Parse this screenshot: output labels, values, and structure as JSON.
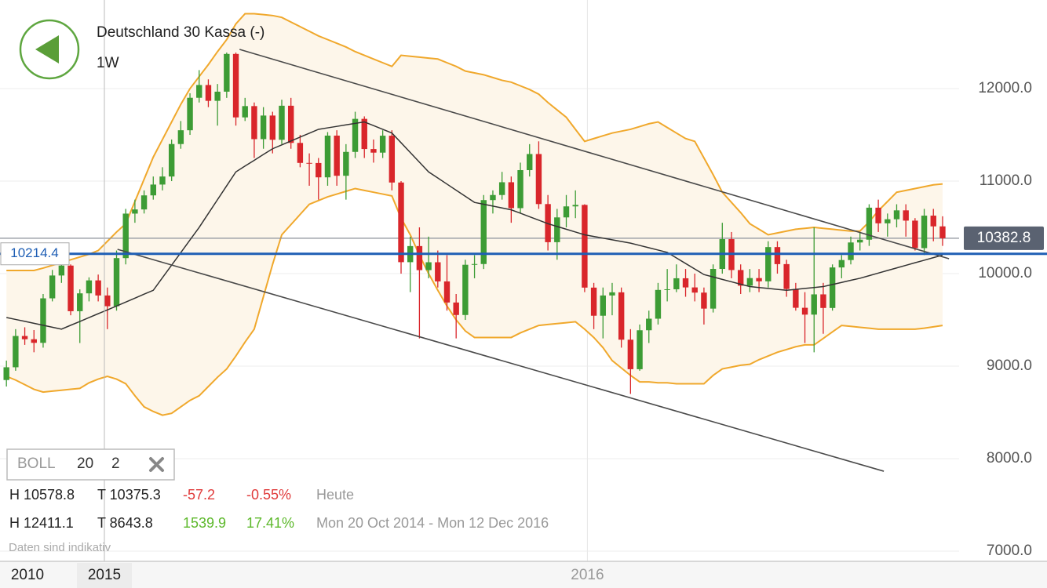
{
  "chart_data": {
    "type": "candlestick",
    "title": "Deutschland 30 Kassa (-)",
    "interval": "1W",
    "up_color": "#3d9c35",
    "down_color": "#d9262b",
    "band_color": "#f0a82c",
    "middle_color": "#333333",
    "band_fill": "#fdf6ea",
    "xlim": [
      -0.7,
      103.8
    ],
    "ylim": [
      6890,
      12958
    ],
    "yticks": [
      {
        "value": 7000,
        "label": "7000.0"
      },
      {
        "value": 8000,
        "label": "8000.0"
      },
      {
        "value": 9000,
        "label": "9000.0"
      },
      {
        "value": 10000,
        "label": "10000.0"
      },
      {
        "value": 11000,
        "label": "11000.0"
      },
      {
        "value": 12000,
        "label": "12000.0"
      }
    ],
    "xticks": [
      {
        "value": 63.3,
        "label": "2016"
      }
    ],
    "grid": true,
    "open": [
      8850,
      8988,
      9326,
      9291,
      9252,
      9733,
      9980,
      10087,
      9594,
      9787,
      9927,
      9764,
      9648,
      10168,
      10649,
      10694,
      10846,
      10963,
      11050,
      11401,
      11550,
      11901,
      12039,
      11868,
      11967,
      12375,
      11689,
      11811,
      11454,
      11709,
      11447,
      11815,
      11413,
      11197,
      11196,
      11041,
      11492,
      11058,
      11316,
      11673,
      11347,
      11308,
      11491,
      10985,
      10124,
      10298,
      10038,
      10123,
      9916,
      9688,
      9553,
      10096,
      10104,
      10795,
      10850,
      10988,
      10708,
      11119,
      11293,
      10752,
      10340,
      10608,
      10727,
      10743,
      9849,
      9545,
      9764,
      9798,
      9286,
      8967,
      9388,
      9513,
      9824,
      9831,
      9950,
      9851,
      9795,
      9622,
      10051,
      10373,
      10039,
      9870,
      9952,
      9917,
      10287,
      10103,
      9834,
      9631,
      9557,
      9776,
      9629,
      10067,
      10147,
      10337,
      10367,
      10713,
      10544,
      10588,
      10684,
      10573,
      10276,
      10627,
      10511
    ],
    "high": [
      9060,
      9400,
      9420,
      9390,
      9780,
      10040,
      10140,
      10100,
      9830,
      9960,
      9990,
      9850,
      10250,
      10700,
      10800,
      10900,
      11050,
      11150,
      11450,
      11650,
      11950,
      12200,
      12100,
      12050,
      12390,
      12390,
      11900,
      11850,
      11800,
      11750,
      11880,
      11900,
      11500,
      11300,
      11250,
      11530,
      11550,
      11400,
      11750,
      11700,
      11450,
      11550,
      11550,
      11000,
      10400,
      10500,
      10400,
      10250,
      10200,
      9780,
      10150,
      10200,
      10850,
      10900,
      11100,
      11050,
      11200,
      11400,
      11430,
      10850,
      10700,
      10850,
      10900,
      10750,
      9900,
      9850,
      9900,
      9850,
      9400,
      9450,
      9600,
      9900,
      10050,
      10100,
      10050,
      10000,
      9850,
      10100,
      10550,
      10450,
      10100,
      10050,
      10050,
      10350,
      10350,
      10150,
      9900,
      9800,
      10500,
      9900,
      10100,
      10200,
      10400,
      10450,
      10750,
      10800,
      10650,
      10750,
      10750,
      10600,
      10700,
      10700,
      10620
    ],
    "low": [
      8780,
      8950,
      9230,
      9150,
      9200,
      9700,
      9900,
      9550,
      9250,
      9700,
      9700,
      9400,
      9600,
      10100,
      10550,
      10650,
      10800,
      10900,
      11000,
      11350,
      11500,
      11850,
      11800,
      11600,
      11900,
      11600,
      11650,
      11250,
      11350,
      11300,
      11400,
      11350,
      11150,
      10950,
      10800,
      10950,
      10950,
      10800,
      11250,
      11250,
      11200,
      11250,
      10900,
      10000,
      9800,
      9300,
      9950,
      9850,
      9600,
      9300,
      9500,
      9950,
      10050,
      10650,
      10800,
      10550,
      10650,
      11050,
      10700,
      10250,
      10150,
      10500,
      10600,
      9800,
      9400,
      9300,
      9550,
      9200,
      8700,
      8950,
      9250,
      9450,
      9700,
      9800,
      9750,
      9700,
      9450,
      9580,
      10000,
      9950,
      9780,
      9800,
      9800,
      9850,
      10000,
      9750,
      9600,
      9250,
      9150,
      9350,
      9600,
      9950,
      10100,
      10250,
      10300,
      10450,
      10400,
      10500,
      10400,
      10250,
      10200,
      10350,
      10300
    ],
    "close": [
      8988,
      9326,
      9291,
      9252,
      9733,
      9980,
      10087,
      9594,
      9787,
      9927,
      9764,
      9648,
      10168,
      10649,
      10694,
      10846,
      10963,
      11050,
      11401,
      11550,
      11901,
      12039,
      11868,
      11967,
      12375,
      11689,
      11811,
      11454,
      11709,
      11447,
      11815,
      11413,
      11197,
      11196,
      11041,
      11492,
      11058,
      11316,
      11673,
      11347,
      11308,
      11491,
      10985,
      10124,
      10298,
      10038,
      10123,
      9916,
      9688,
      9553,
      10096,
      10104,
      10795,
      10850,
      10988,
      10708,
      11119,
      11293,
      10752,
      10340,
      10608,
      10727,
      10743,
      9849,
      9545,
      9764,
      9798,
      9286,
      8967,
      9388,
      9513,
      9824,
      9831,
      9950,
      9851,
      9795,
      9622,
      10051,
      10373,
      10039,
      9870,
      9952,
      9917,
      10287,
      10103,
      9834,
      9631,
      9557,
      9776,
      9629,
      10067,
      10147,
      10337,
      10367,
      10713,
      10544,
      10588,
      10684,
      10573,
      10276,
      10627,
      10511,
      10383
    ],
    "bands": {
      "upper": [
        10034,
        10034,
        10034,
        10034,
        10060,
        10090,
        10120,
        10150,
        10180,
        10210,
        10250,
        10350,
        10450,
        10540,
        10780,
        11020,
        11260,
        11450,
        11640,
        11830,
        12000,
        12130,
        12260,
        12400,
        12530,
        12700,
        12810,
        12810,
        12800,
        12790,
        12770,
        12720,
        12670,
        12620,
        12570,
        12530,
        12490,
        12450,
        12400,
        12360,
        12320,
        12280,
        12240,
        12360,
        12350,
        12340,
        12330,
        12320,
        12280,
        12240,
        12190,
        12170,
        12150,
        12120,
        12090,
        12070,
        12030,
        11990,
        11940,
        11850,
        11770,
        11690,
        11560,
        11430,
        11460,
        11490,
        11520,
        11540,
        11560,
        11590,
        11620,
        11640,
        11580,
        11520,
        11460,
        11430,
        11250,
        11070,
        10880,
        10770,
        10660,
        10540,
        10480,
        10420,
        10440,
        10460,
        10480,
        10490,
        10500,
        10490,
        10480,
        10470,
        10460,
        10460,
        10560,
        10680,
        10780,
        10880,
        10900,
        10920,
        10940,
        10960,
        10970
      ],
      "middle": [
        9526,
        9505,
        9484,
        9463,
        9442,
        9421,
        9400,
        9442,
        9483,
        9525,
        9567,
        9608,
        9650,
        9693,
        9735,
        9778,
        9820,
        9956,
        10092,
        10228,
        10364,
        10500,
        10650,
        10800,
        10950,
        11100,
        11163,
        11225,
        11288,
        11350,
        11392,
        11434,
        11476,
        11518,
        11560,
        11576,
        11592,
        11608,
        11624,
        11640,
        11600,
        11560,
        11520,
        11415,
        11310,
        11205,
        11100,
        11034,
        10968,
        10902,
        10836,
        10770,
        10750,
        10730,
        10710,
        10690,
        10653,
        10615,
        10578,
        10540,
        10510,
        10480,
        10450,
        10420,
        10402,
        10384,
        10366,
        10348,
        10330,
        10305,
        10280,
        10255,
        10230,
        10170,
        10110,
        10050,
        9990,
        9964,
        9938,
        9912,
        9886,
        9860,
        9850,
        9840,
        9830,
        9820,
        9830,
        9840,
        9850,
        9860,
        9883,
        9905,
        9928,
        9950,
        9978,
        10006,
        10034,
        10062,
        10090,
        10118,
        10145,
        10173,
        10200
      ],
      "lower": [
        8890,
        8850,
        8800,
        8750,
        8720,
        8730,
        8740,
        8750,
        8760,
        8820,
        8860,
        8890,
        8860,
        8810,
        8680,
        8560,
        8510,
        8470,
        8490,
        8560,
        8630,
        8680,
        8780,
        8880,
        8970,
        9110,
        9260,
        9400,
        9750,
        10100,
        10420,
        10530,
        10640,
        10750,
        10790,
        10830,
        10860,
        10890,
        10920,
        10900,
        10880,
        10860,
        10840,
        10600,
        10420,
        10200,
        10000,
        9820,
        9650,
        9500,
        9380,
        9310,
        9310,
        9310,
        9310,
        9310,
        9360,
        9400,
        9440,
        9450,
        9460,
        9470,
        9480,
        9400,
        9310,
        9200,
        9060,
        8980,
        8900,
        8830,
        8830,
        8820,
        8820,
        8810,
        8810,
        8810,
        8810,
        8900,
        8970,
        8990,
        9010,
        9020,
        9070,
        9110,
        9150,
        9180,
        9210,
        9230,
        9230,
        9300,
        9370,
        9440,
        9430,
        9420,
        9410,
        9400,
        9400,
        9400,
        9400,
        9400,
        9410,
        9425,
        9440
      ]
    },
    "trendlines": [
      {
        "x": [
          25.4,
          102.7
        ],
        "y": [
          12424,
          10161
        ]
      },
      {
        "x": [
          12.1,
          95.6
        ],
        "y": [
          10263,
          7864
        ]
      }
    ],
    "last_price": 10382.8,
    "marker_line": 10214.4,
    "indicator": {
      "name": "BOLL",
      "period": "20",
      "width": "2"
    },
    "stats": [
      {
        "high": "H 10578.8",
        "low": "T 10375.3",
        "change": "-57.2",
        "percent": "-0.55%",
        "period": "Heute"
      },
      {
        "high": "H 12411.1",
        "low": "T 8643.8",
        "change": "1539.9",
        "percent": "17.41%",
        "period": "Mon 20 Oct 2014 - Mon 12 Dec 2016"
      }
    ],
    "disclaimer": "Daten sind indikativ",
    "range_buttons": [
      "2010",
      "2015"
    ]
  }
}
